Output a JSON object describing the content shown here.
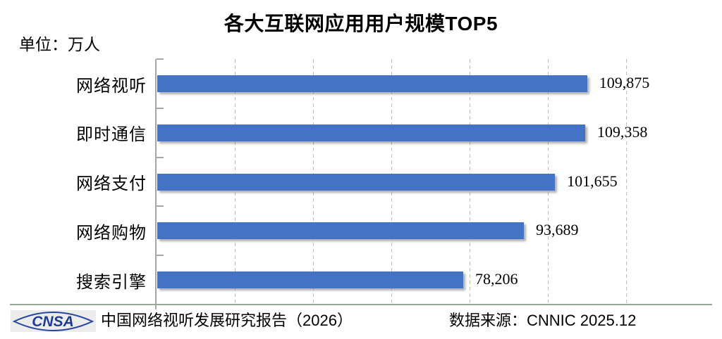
{
  "title": "各大互联网应用用户规模TOP5",
  "unit_label": "单位：万人",
  "chart_data": {
    "type": "bar",
    "orientation": "horizontal",
    "title": "各大互联网应用用户规模TOP5",
    "unit": "万人",
    "categories": [
      "网络视听",
      "即时通信",
      "网络支付",
      "网络购物",
      "搜索引擎"
    ],
    "values": [
      109875,
      109358,
      101655,
      93689,
      78206
    ],
    "value_labels": [
      "109,875",
      "109,358",
      "101,655",
      "93,689",
      "78,206"
    ],
    "xlabel": "",
    "ylabel": "",
    "xlim": [
      0,
      120000
    ],
    "gridline_step": 20000,
    "grid": "vertical-dashed",
    "legend": "none"
  },
  "footer": {
    "logo_text": "CNSA",
    "report": "中国网络视听发展研究报告（2026）",
    "source": "数据来源：CNNIC 2025.12"
  },
  "colors": {
    "bar": "#4472C4",
    "axis": "#A6A6A6",
    "gridline": "#BFBFBF",
    "baseline": "#9AA89A",
    "logo_blue": "#1F3C94",
    "text": "#000000"
  }
}
